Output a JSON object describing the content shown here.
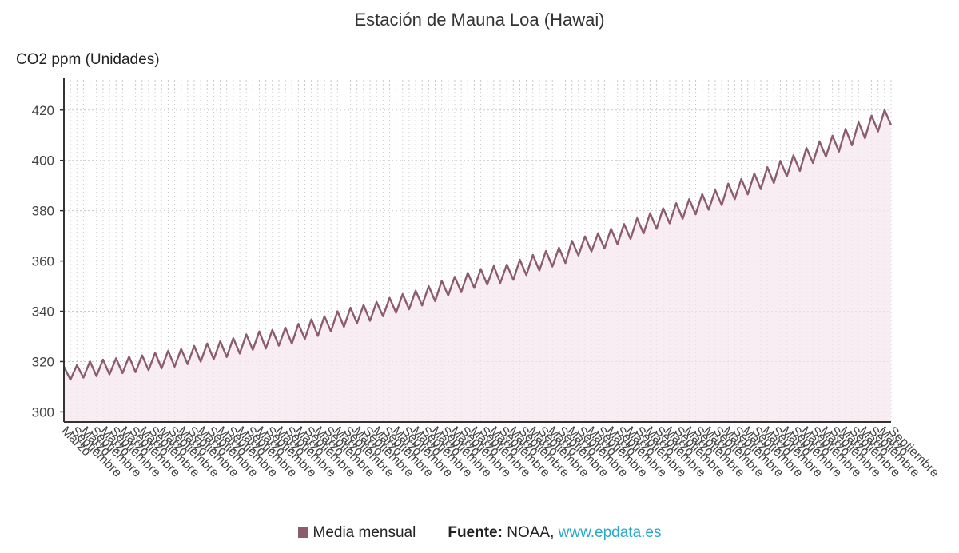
{
  "title": "Estación de Mauna Loa (Hawai)",
  "legend": {
    "label": "Media mensual"
  },
  "source": {
    "label": "Fuente:",
    "name": "NOAA,",
    "link": "www.epdata.es"
  },
  "colors": {
    "line": "#8c5b6e",
    "fill": "#f3e6ec",
    "grid": "#c8c8c8",
    "axis": "#333333",
    "link": "#2aa9c9"
  },
  "chart_data": {
    "type": "area",
    "ylabel": "CO2 ppm (Unidades)",
    "ylim": [
      296,
      432
    ],
    "yticks": [
      300,
      320,
      340,
      360,
      380,
      400,
      420
    ],
    "grid": true,
    "legend_position": "bottom",
    "x_tick_labels_pattern": [
      "Marzo",
      "Septiembre"
    ],
    "x_tick_count": 86,
    "series": [
      {
        "name": "Media mensual",
        "points": [
          [
            "1959-03",
            318.0
          ],
          [
            "1959-09",
            312.8
          ],
          [
            "1960-03",
            318.6
          ],
          [
            "1960-09",
            313.6
          ],
          [
            "1961-03",
            320.1
          ],
          [
            "1961-09",
            314.2
          ],
          [
            "1962-03",
            320.8
          ],
          [
            "1962-09",
            314.9
          ],
          [
            "1963-03",
            321.3
          ],
          [
            "1963-09",
            315.4
          ],
          [
            "1964-03",
            322.0
          ],
          [
            "1964-09",
            315.8
          ],
          [
            "1965-03",
            322.5
          ],
          [
            "1965-09",
            316.6
          ],
          [
            "1966-03",
            323.5
          ],
          [
            "1966-09",
            317.3
          ],
          [
            "1967-03",
            324.3
          ],
          [
            "1967-09",
            318.0
          ],
          [
            "1968-03",
            325.0
          ],
          [
            "1968-09",
            319.0
          ],
          [
            "1969-03",
            326.2
          ],
          [
            "1969-09",
            320.0
          ],
          [
            "1970-03",
            327.2
          ],
          [
            "1970-09",
            320.9
          ],
          [
            "1971-03",
            328.1
          ],
          [
            "1971-09",
            321.8
          ],
          [
            "1972-03",
            329.3
          ],
          [
            "1972-09",
            323.2
          ],
          [
            "1973-03",
            330.8
          ],
          [
            "1973-09",
            324.7
          ],
          [
            "1974-03",
            332.0
          ],
          [
            "1974-09",
            325.2
          ],
          [
            "1975-03",
            332.6
          ],
          [
            "1975-09",
            326.3
          ],
          [
            "1976-03",
            333.5
          ],
          [
            "1976-09",
            327.1
          ],
          [
            "1977-03",
            335.0
          ],
          [
            "1977-09",
            329.0
          ],
          [
            "1978-03",
            336.8
          ],
          [
            "1978-09",
            330.2
          ],
          [
            "1979-03",
            338.0
          ],
          [
            "1979-09",
            332.0
          ],
          [
            "1980-03",
            340.0
          ],
          [
            "1980-09",
            333.8
          ],
          [
            "1981-03",
            341.4
          ],
          [
            "1981-09",
            335.2
          ],
          [
            "1982-03",
            342.5
          ],
          [
            "1982-09",
            336.2
          ],
          [
            "1983-03",
            343.7
          ],
          [
            "1983-09",
            338.0
          ],
          [
            "1984-03",
            345.3
          ],
          [
            "1984-09",
            339.4
          ],
          [
            "1985-03",
            346.8
          ],
          [
            "1985-09",
            340.8
          ],
          [
            "1986-03",
            348.2
          ],
          [
            "1986-09",
            342.3
          ],
          [
            "1987-03",
            350.0
          ],
          [
            "1987-09",
            344.0
          ],
          [
            "1988-03",
            352.1
          ],
          [
            "1988-09",
            346.3
          ],
          [
            "1989-03",
            353.7
          ],
          [
            "1989-09",
            347.6
          ],
          [
            "1990-03",
            355.3
          ],
          [
            "1990-09",
            349.3
          ],
          [
            "1991-03",
            356.8
          ],
          [
            "1991-09",
            350.6
          ],
          [
            "1992-03",
            358.0
          ],
          [
            "1992-09",
            351.3
          ],
          [
            "1993-03",
            358.6
          ],
          [
            "1993-09",
            352.5
          ],
          [
            "1994-03",
            360.5
          ],
          [
            "1994-09",
            354.4
          ],
          [
            "1995-03",
            362.4
          ],
          [
            "1995-09",
            356.2
          ],
          [
            "1996-03",
            364.0
          ],
          [
            "1996-09",
            357.8
          ],
          [
            "1997-03",
            365.3
          ],
          [
            "1997-09",
            359.2
          ],
          [
            "1998-03",
            368.0
          ],
          [
            "1998-09",
            362.2
          ],
          [
            "1999-03",
            369.8
          ],
          [
            "1999-09",
            363.8
          ],
          [
            "2000-03",
            371.0
          ],
          [
            "2000-09",
            365.0
          ],
          [
            "2001-03",
            372.8
          ],
          [
            "2001-09",
            366.7
          ],
          [
            "2002-03",
            374.7
          ],
          [
            "2002-09",
            368.8
          ],
          [
            "2003-03",
            377.0
          ],
          [
            "2003-09",
            371.0
          ],
          [
            "2004-03",
            379.0
          ],
          [
            "2004-09",
            372.8
          ],
          [
            "2005-03",
            381.0
          ],
          [
            "2005-09",
            375.0
          ],
          [
            "2006-03",
            383.0
          ],
          [
            "2006-09",
            376.8
          ],
          [
            "2007-03",
            384.6
          ],
          [
            "2007-09",
            378.6
          ],
          [
            "2008-03",
            386.6
          ],
          [
            "2008-09",
            380.4
          ],
          [
            "2009-03",
            388.2
          ],
          [
            "2009-09",
            382.2
          ],
          [
            "2010-03",
            390.8
          ],
          [
            "2010-09",
            384.6
          ],
          [
            "2011-03",
            392.6
          ],
          [
            "2011-09",
            386.5
          ],
          [
            "2012-03",
            394.8
          ],
          [
            "2012-09",
            388.6
          ],
          [
            "2013-03",
            397.3
          ],
          [
            "2013-09",
            391.0
          ],
          [
            "2014-03",
            399.8
          ],
          [
            "2014-09",
            393.6
          ],
          [
            "2015-03",
            402.0
          ],
          [
            "2015-09",
            395.8
          ],
          [
            "2016-03",
            405.0
          ],
          [
            "2016-09",
            399.0
          ],
          [
            "2017-03",
            407.5
          ],
          [
            "2017-09",
            401.5
          ],
          [
            "2018-03",
            409.8
          ],
          [
            "2018-09",
            403.5
          ],
          [
            "2019-03",
            412.5
          ],
          [
            "2019-09",
            406.0
          ],
          [
            "2020-03",
            415.2
          ],
          [
            "2020-09",
            408.8
          ],
          [
            "2021-03",
            417.8
          ],
          [
            "2021-09",
            411.5
          ],
          [
            "2022-03",
            420.0
          ],
          [
            "2022-09",
            414.0
          ]
        ]
      }
    ]
  }
}
